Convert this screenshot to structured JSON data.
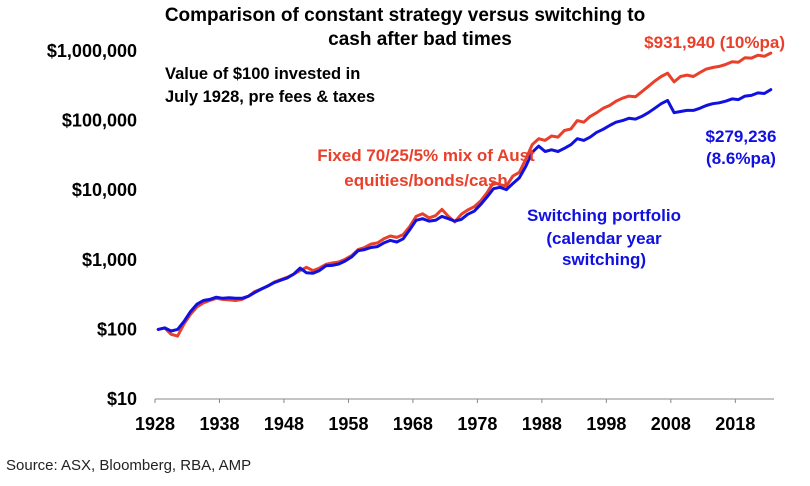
{
  "chart_data": {
    "type": "line",
    "title": [
      "Comparison of constant strategy versus switching to",
      "cash after bad times"
    ],
    "subtitle": [
      "Value of $100 invested in",
      "July 1928, pre fees & taxes"
    ],
    "xlabel": "",
    "ylabel": "",
    "y_scale": "log",
    "ylim": [
      10,
      1000000
    ],
    "xlim": [
      1928,
      2024
    ],
    "y_ticks": [
      {
        "value": 10,
        "label": "$10"
      },
      {
        "value": 100,
        "label": "$100"
      },
      {
        "value": 1000,
        "label": "$1,000"
      },
      {
        "value": 10000,
        "label": "$10,000"
      },
      {
        "value": 100000,
        "label": "$100,000"
      },
      {
        "value": 1000000,
        "label": "$1,000,000"
      }
    ],
    "x_ticks": [
      1928,
      1938,
      1948,
      1958,
      1968,
      1978,
      1988,
      1998,
      2008,
      2018
    ],
    "series": [
      {
        "name": "Fixed 70/25/5% mix of Aust equities/bonds/cash",
        "label_lines": [
          "Fixed 70/25/5% mix of Aust",
          "equities/bonds/cash"
        ],
        "color": "#e8402a",
        "end_label": [
          "$931,940 (10%pa)"
        ],
        "points": [
          [
            1928.5,
            100
          ],
          [
            1929.5,
            105
          ],
          [
            1930.5,
            85
          ],
          [
            1931.5,
            80
          ],
          [
            1932.5,
            120
          ],
          [
            1933.5,
            165
          ],
          [
            1934.5,
            210
          ],
          [
            1935.5,
            240
          ],
          [
            1936.5,
            260
          ],
          [
            1937.5,
            280
          ],
          [
            1938.5,
            270
          ],
          [
            1939.5,
            265
          ],
          [
            1940.5,
            260
          ],
          [
            1941.5,
            270
          ],
          [
            1942.5,
            300
          ],
          [
            1943.5,
            350
          ],
          [
            1944.5,
            380
          ],
          [
            1945.5,
            420
          ],
          [
            1946.5,
            480
          ],
          [
            1947.5,
            520
          ],
          [
            1948.5,
            560
          ],
          [
            1949.5,
            620
          ],
          [
            1950.5,
            700
          ],
          [
            1951.5,
            780
          ],
          [
            1952.5,
            700
          ],
          [
            1953.5,
            760
          ],
          [
            1954.5,
            860
          ],
          [
            1955.5,
            900
          ],
          [
            1956.5,
            930
          ],
          [
            1957.5,
            1020
          ],
          [
            1958.5,
            1150
          ],
          [
            1959.5,
            1400
          ],
          [
            1960.5,
            1500
          ],
          [
            1961.5,
            1680
          ],
          [
            1962.5,
            1750
          ],
          [
            1963.5,
            2000
          ],
          [
            1964.5,
            2200
          ],
          [
            1965.5,
            2100
          ],
          [
            1966.5,
            2300
          ],
          [
            1967.5,
            3000
          ],
          [
            1968.5,
            4200
          ],
          [
            1969.5,
            4600
          ],
          [
            1970.5,
            4000
          ],
          [
            1971.5,
            4300
          ],
          [
            1972.5,
            5300
          ],
          [
            1973.5,
            4200
          ],
          [
            1974.5,
            3500
          ],
          [
            1975.5,
            4500
          ],
          [
            1976.5,
            5200
          ],
          [
            1977.5,
            5800
          ],
          [
            1978.5,
            7000
          ],
          [
            1979.5,
            9200
          ],
          [
            1980.5,
            13000
          ],
          [
            1981.5,
            12000
          ],
          [
            1982.5,
            11500
          ],
          [
            1983.5,
            16000
          ],
          [
            1984.5,
            18000
          ],
          [
            1985.5,
            28000
          ],
          [
            1986.5,
            45000
          ],
          [
            1987.5,
            55000
          ],
          [
            1988.5,
            52000
          ],
          [
            1989.5,
            60000
          ],
          [
            1990.5,
            58000
          ],
          [
            1991.5,
            72000
          ],
          [
            1992.5,
            76000
          ],
          [
            1993.5,
            100000
          ],
          [
            1994.5,
            95000
          ],
          [
            1995.5,
            115000
          ],
          [
            1996.5,
            130000
          ],
          [
            1997.5,
            150000
          ],
          [
            1998.5,
            165000
          ],
          [
            1999.5,
            190000
          ],
          [
            2000.5,
            210000
          ],
          [
            2001.5,
            225000
          ],
          [
            2002.5,
            220000
          ],
          [
            2003.5,
            260000
          ],
          [
            2004.5,
            310000
          ],
          [
            2005.5,
            370000
          ],
          [
            2006.5,
            430000
          ],
          [
            2007.5,
            480000
          ],
          [
            2008.5,
            360000
          ],
          [
            2009.5,
            430000
          ],
          [
            2010.5,
            450000
          ],
          [
            2011.5,
            430000
          ],
          [
            2012.5,
            490000
          ],
          [
            2013.5,
            550000
          ],
          [
            2014.5,
            580000
          ],
          [
            2015.5,
            600000
          ],
          [
            2016.5,
            640000
          ],
          [
            2017.5,
            700000
          ],
          [
            2018.5,
            690000
          ],
          [
            2019.5,
            800000
          ],
          [
            2020.5,
            790000
          ],
          [
            2021.5,
            870000
          ],
          [
            2022.5,
            840000
          ],
          [
            2023.5,
            931940
          ]
        ]
      },
      {
        "name": "Switching portfolio (calendar year switching)",
        "label_lines": [
          "Switching portfolio",
          "(calendar year",
          "switching)"
        ],
        "color": "#1010e0",
        "end_label": [
          "$279,236",
          "(8.6%pa)"
        ],
        "points": [
          [
            1928.5,
            100
          ],
          [
            1929.5,
            105
          ],
          [
            1930.5,
            95
          ],
          [
            1931.5,
            100
          ],
          [
            1932.5,
            130
          ],
          [
            1933.5,
            180
          ],
          [
            1934.5,
            230
          ],
          [
            1935.5,
            260
          ],
          [
            1936.5,
            270
          ],
          [
            1937.5,
            290
          ],
          [
            1938.5,
            280
          ],
          [
            1939.5,
            285
          ],
          [
            1940.5,
            280
          ],
          [
            1941.5,
            280
          ],
          [
            1942.5,
            300
          ],
          [
            1943.5,
            340
          ],
          [
            1944.5,
            380
          ],
          [
            1945.5,
            420
          ],
          [
            1946.5,
            470
          ],
          [
            1947.5,
            510
          ],
          [
            1948.5,
            550
          ],
          [
            1949.5,
            620
          ],
          [
            1950.5,
            760
          ],
          [
            1951.5,
            650
          ],
          [
            1952.5,
            640
          ],
          [
            1953.5,
            700
          ],
          [
            1954.5,
            820
          ],
          [
            1955.5,
            830
          ],
          [
            1956.5,
            870
          ],
          [
            1957.5,
            960
          ],
          [
            1958.5,
            1100
          ],
          [
            1959.5,
            1350
          ],
          [
            1960.5,
            1400
          ],
          [
            1961.5,
            1500
          ],
          [
            1962.5,
            1550
          ],
          [
            1963.5,
            1750
          ],
          [
            1964.5,
            1900
          ],
          [
            1965.5,
            1800
          ],
          [
            1966.5,
            2000
          ],
          [
            1967.5,
            2700
          ],
          [
            1968.5,
            3700
          ],
          [
            1969.5,
            3900
          ],
          [
            1970.5,
            3600
          ],
          [
            1971.5,
            3700
          ],
          [
            1972.5,
            4200
          ],
          [
            1973.5,
            3900
          ],
          [
            1974.5,
            3600
          ],
          [
            1975.5,
            3800
          ],
          [
            1976.5,
            4500
          ],
          [
            1977.5,
            5000
          ],
          [
            1978.5,
            6200
          ],
          [
            1979.5,
            8000
          ],
          [
            1980.5,
            10500
          ],
          [
            1981.5,
            11000
          ],
          [
            1982.5,
            10200
          ],
          [
            1983.5,
            12500
          ],
          [
            1984.5,
            15000
          ],
          [
            1985.5,
            22000
          ],
          [
            1986.5,
            35000
          ],
          [
            1987.5,
            43000
          ],
          [
            1988.5,
            36000
          ],
          [
            1989.5,
            38000
          ],
          [
            1990.5,
            36000
          ],
          [
            1991.5,
            40000
          ],
          [
            1992.5,
            45000
          ],
          [
            1993.5,
            55000
          ],
          [
            1994.5,
            52000
          ],
          [
            1995.5,
            58000
          ],
          [
            1996.5,
            68000
          ],
          [
            1997.5,
            75000
          ],
          [
            1998.5,
            85000
          ],
          [
            1999.5,
            95000
          ],
          [
            2000.5,
            100000
          ],
          [
            2001.5,
            108000
          ],
          [
            2002.5,
            105000
          ],
          [
            2003.5,
            115000
          ],
          [
            2004.5,
            130000
          ],
          [
            2005.5,
            150000
          ],
          [
            2006.5,
            175000
          ],
          [
            2007.5,
            195000
          ],
          [
            2008.5,
            130000
          ],
          [
            2009.5,
            135000
          ],
          [
            2010.5,
            140000
          ],
          [
            2011.5,
            140000
          ],
          [
            2012.5,
            150000
          ],
          [
            2013.5,
            165000
          ],
          [
            2014.5,
            175000
          ],
          [
            2015.5,
            180000
          ],
          [
            2016.5,
            190000
          ],
          [
            2017.5,
            205000
          ],
          [
            2018.5,
            200000
          ],
          [
            2019.5,
            225000
          ],
          [
            2020.5,
            230000
          ],
          [
            2021.5,
            250000
          ],
          [
            2022.5,
            245000
          ],
          [
            2023.5,
            279236
          ]
        ]
      }
    ]
  },
  "source": "Source: ASX, Bloomberg, RBA, AMP"
}
